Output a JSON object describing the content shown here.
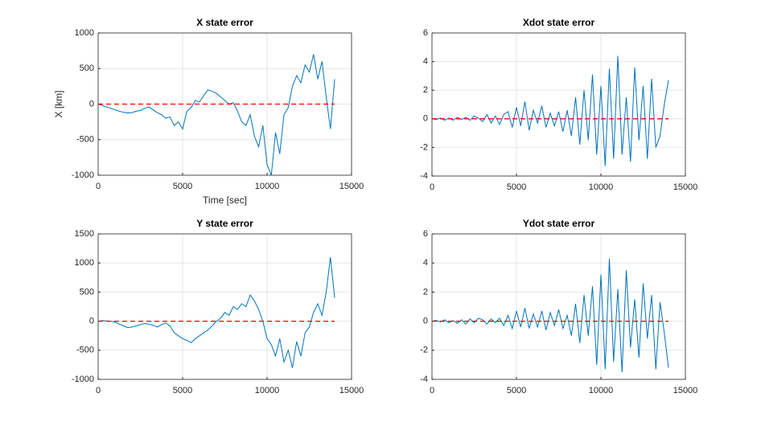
{
  "chart_data": [
    {
      "type": "line",
      "title": "X state error",
      "xlabel": "Time [sec]",
      "ylabel": "X [km]",
      "x": [
        0,
        250,
        500,
        750,
        1000,
        1250,
        1500,
        1750,
        2000,
        2250,
        2500,
        2750,
        3000,
        3250,
        3500,
        3750,
        4000,
        4250,
        4500,
        4750,
        5000,
        5250,
        5500,
        5750,
        6000,
        6250,
        6500,
        6750,
        7000,
        7250,
        7500,
        7750,
        8000,
        8250,
        8500,
        8750,
        9000,
        9250,
        9500,
        9750,
        10000,
        10250,
        10500,
        10750,
        11000,
        11250,
        11500,
        11750,
        12000,
        12250,
        12500,
        12750,
        13000,
        13250,
        13500,
        13750,
        14000
      ],
      "series": [
        {
          "color": "#0072bd",
          "values": [
            0,
            -20,
            -40,
            -60,
            -80,
            -100,
            -115,
            -125,
            -120,
            -100,
            -90,
            -60,
            -40,
            -80,
            -120,
            -150,
            -200,
            -180,
            -300,
            -250,
            -350,
            -100,
            -50,
            50,
            30,
            120,
            200,
            180,
            150,
            100,
            50,
            0,
            20,
            -100,
            -250,
            -300,
            -150,
            -450,
            -600,
            -300,
            -850,
            -1000,
            -400,
            -700,
            -150,
            -50,
            250,
            400,
            300,
            550,
            450,
            700,
            350,
            600,
            100,
            -350,
            350
          ]
        },
        {
          "color": "#ff0000",
          "dashed": true,
          "x": [
            0,
            14000
          ],
          "values": [
            0,
            0
          ]
        }
      ],
      "xlim": [
        0,
        15000
      ],
      "xticks": [
        0,
        5000,
        10000,
        15000
      ],
      "ylim": [
        -1000,
        1000
      ],
      "yticks": [
        -1000,
        -500,
        0,
        500,
        1000
      ],
      "grid": true
    },
    {
      "type": "line",
      "title": "Xdot state error",
      "x": [
        0,
        250,
        500,
        750,
        1000,
        1250,
        1500,
        1750,
        2000,
        2250,
        2500,
        2750,
        3000,
        3250,
        3500,
        3750,
        4000,
        4250,
        4500,
        4750,
        5000,
        5250,
        5500,
        5750,
        6000,
        6250,
        6500,
        6750,
        7000,
        7250,
        7500,
        7750,
        8000,
        8250,
        8500,
        8750,
        9000,
        9250,
        9500,
        9750,
        10000,
        10250,
        10500,
        10750,
        11000,
        11250,
        11500,
        11750,
        12000,
        12250,
        12500,
        12750,
        13000,
        13250,
        13500,
        13750,
        14000
      ],
      "series": [
        {
          "color": "#0072bd",
          "values": [
            0,
            -0.05,
            0.05,
            -0.1,
            0.05,
            -0.1,
            0.1,
            -0.05,
            0.1,
            -0.1,
            0.2,
            0.05,
            -0.2,
            0.3,
            -0.3,
            0.2,
            -0.4,
            0.3,
            0.5,
            -0.6,
            0.8,
            -0.5,
            1.2,
            -0.8,
            0.6,
            -0.3,
            0.9,
            -0.6,
            0.4,
            -0.5,
            0.5,
            -0.9,
            0.6,
            -1.2,
            1.5,
            -1.8,
            2.0,
            -1.5,
            3.1,
            -2.5,
            2.3,
            -3.3,
            3.5,
            -2.8,
            4.4,
            -2.5,
            1.5,
            -3.0,
            3.6,
            -1.5,
            2.3,
            -2.8,
            2.8,
            -2.0,
            -1.2,
            1.0,
            2.7
          ]
        },
        {
          "color": "#ff0000",
          "dashed": true,
          "x": [
            0,
            14000
          ],
          "values": [
            0,
            0
          ]
        }
      ],
      "xlim": [
        0,
        15000
      ],
      "xticks": [
        0,
        5000,
        10000,
        15000
      ],
      "ylim": [
        -4,
        6
      ],
      "yticks": [
        -4,
        -2,
        0,
        2,
        4,
        6
      ],
      "grid": true
    },
    {
      "type": "line",
      "title": "Y state error",
      "x": [
        0,
        250,
        500,
        750,
        1000,
        1250,
        1500,
        1750,
        2000,
        2250,
        2500,
        2750,
        3000,
        3250,
        3500,
        3750,
        4000,
        4250,
        4500,
        4750,
        5000,
        5250,
        5500,
        5750,
        6000,
        6250,
        6500,
        6750,
        7000,
        7250,
        7500,
        7750,
        8000,
        8250,
        8500,
        8750,
        9000,
        9250,
        9500,
        9750,
        10000,
        10250,
        10500,
        10750,
        11000,
        11250,
        11500,
        11750,
        12000,
        12250,
        12500,
        12750,
        13000,
        13250,
        13500,
        13750,
        14000
      ],
      "series": [
        {
          "color": "#0072bd",
          "values": [
            0,
            10,
            5,
            0,
            -20,
            -50,
            -80,
            -110,
            -100,
            -80,
            -60,
            -40,
            -50,
            -70,
            -100,
            -60,
            -30,
            -80,
            -200,
            -250,
            -300,
            -330,
            -370,
            -300,
            -250,
            -200,
            -150,
            -80,
            0,
            50,
            150,
            100,
            250,
            200,
            300,
            250,
            450,
            350,
            200,
            0,
            -300,
            -400,
            -600,
            -300,
            -700,
            -500,
            -800,
            -350,
            -600,
            -200,
            -100,
            150,
            300,
            100,
            500,
            1100,
            400
          ]
        },
        {
          "color": "#ff0000",
          "dashed": true,
          "x": [
            0,
            14000
          ],
          "values": [
            0,
            0
          ]
        }
      ],
      "xlim": [
        0,
        15000
      ],
      "xticks": [
        0,
        5000,
        10000,
        15000
      ],
      "ylim": [
        -1000,
        1500
      ],
      "yticks": [
        -1000,
        -500,
        0,
        500,
        1000,
        1500
      ],
      "grid": true
    },
    {
      "type": "line",
      "title": "Ydot state error",
      "x": [
        0,
        250,
        500,
        750,
        1000,
        1250,
        1500,
        1750,
        2000,
        2250,
        2500,
        2750,
        3000,
        3250,
        3500,
        3750,
        4000,
        4250,
        4500,
        4750,
        5000,
        5250,
        5500,
        5750,
        6000,
        6250,
        6500,
        6750,
        7000,
        7250,
        7500,
        7750,
        8000,
        8250,
        8500,
        8750,
        9000,
        9250,
        9500,
        9750,
        10000,
        10250,
        10500,
        10750,
        11000,
        11250,
        11500,
        11750,
        12000,
        12250,
        12500,
        12750,
        13000,
        13250,
        13500,
        13750,
        14000
      ],
      "series": [
        {
          "color": "#0072bd",
          "values": [
            0,
            0.05,
            -0.05,
            0.1,
            -0.1,
            0.05,
            -0.15,
            0.1,
            -0.2,
            0.15,
            -0.1,
            0.2,
            0.1,
            -0.2,
            0.15,
            -0.1,
            0.2,
            -0.3,
            0.4,
            -0.5,
            0.7,
            -0.4,
            0.9,
            -0.5,
            0.5,
            -0.4,
            0.7,
            -0.6,
            0.6,
            -0.3,
            0.8,
            -0.5,
            0.4,
            -1.0,
            1.2,
            -1.5,
            1.8,
            -1.0,
            2.4,
            -3.0,
            3.2,
            -3.3,
            4.3,
            -2.8,
            2.2,
            -3.5,
            3.5,
            -1.8,
            1.5,
            -2.5,
            2.6,
            -1.2,
            1.8,
            -3.3,
            1.3,
            -0.8,
            -3.2
          ]
        },
        {
          "color": "#ff0000",
          "dashed": true,
          "x": [
            0,
            14000
          ],
          "values": [
            0,
            0
          ]
        }
      ],
      "xlim": [
        0,
        15000
      ],
      "xticks": [
        0,
        5000,
        10000,
        15000
      ],
      "ylim": [
        -4,
        6
      ],
      "yticks": [
        -4,
        -2,
        0,
        2,
        4,
        6
      ],
      "grid": true
    }
  ]
}
